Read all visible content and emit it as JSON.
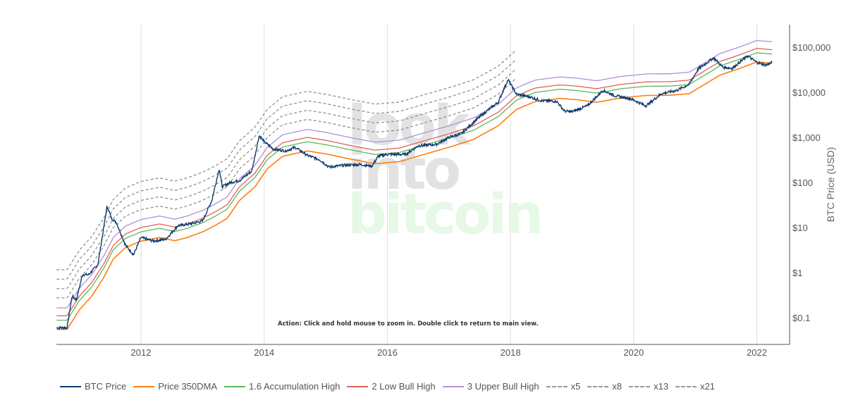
{
  "chart_data": {
    "type": "line",
    "title": "",
    "xlabel": "",
    "ylabel": "BTC Price (USD)",
    "y_scale": "log",
    "xlim": [
      2010.63,
      2022.52
    ],
    "ylim": [
      0.03,
      300000
    ],
    "x_ticks": [
      "2012",
      "2014",
      "2016",
      "2018",
      "2020",
      "2022"
    ],
    "x_tick_values": [
      2012,
      2014,
      2016,
      2018,
      2020,
      2022
    ],
    "y_ticks": [
      "$0.1",
      "$1",
      "$10",
      "$100",
      "$1,000",
      "$10,000",
      "$100,000"
    ],
    "y_tick_values": [
      0.1,
      1,
      10,
      100,
      1000,
      10000,
      100000
    ],
    "grid": "vertical",
    "legend_placement": "bottom",
    "annotation": "Action: Click and hold mouse to zoom in.  Double click to return to main view.",
    "watermark": [
      "look",
      "into",
      "bitcoin"
    ],
    "btc_price": {
      "name": "BTC Price",
      "color": "#0d3a6e",
      "x": [
        2010.63,
        2010.8,
        2010.88,
        2010.95,
        2011.05,
        2011.15,
        2011.3,
        2011.45,
        2011.52,
        2011.6,
        2011.75,
        2011.88,
        2012.0,
        2012.2,
        2012.4,
        2012.6,
        2012.8,
        2013.0,
        2013.15,
        2013.27,
        2013.32,
        2013.45,
        2013.6,
        2013.8,
        2013.92,
        2014.0,
        2014.15,
        2014.35,
        2014.5,
        2014.7,
        2014.9,
        2015.05,
        2015.3,
        2015.55,
        2015.75,
        2015.85,
        2016.0,
        2016.3,
        2016.5,
        2016.8,
        2017.0,
        2017.2,
        2017.45,
        2017.65,
        2017.8,
        2017.96,
        2018.1,
        2018.3,
        2018.5,
        2018.75,
        2018.88,
        2019.0,
        2019.25,
        2019.5,
        2019.7,
        2019.95,
        2020.2,
        2020.45,
        2020.7,
        2020.9,
        2021.05,
        2021.3,
        2021.45,
        2021.6,
        2021.85,
        2022.0,
        2022.15,
        2022.25
      ],
      "y": [
        0.06,
        0.06,
        0.3,
        0.25,
        0.9,
        0.9,
        1.5,
        30,
        16,
        13,
        4,
        2.5,
        6,
        5,
        5.5,
        11,
        12,
        14,
        40,
        200,
        80,
        100,
        110,
        180,
        1100,
        800,
        550,
        500,
        600,
        400,
        320,
        220,
        240,
        250,
        230,
        380,
        420,
        420,
        650,
        700,
        1000,
        1200,
        2500,
        4200,
        6000,
        19000,
        9000,
        8000,
        6500,
        6300,
        3800,
        3700,
        5000,
        11000,
        8300,
        7200,
        5000,
        9300,
        11000,
        15000,
        33000,
        58000,
        36000,
        34000,
        64000,
        46000,
        40000,
        46000
      ]
    },
    "dma350": {
      "name": "Price 350DMA",
      "color": "#ff7f0e",
      "x": [
        2010.63,
        2010.8,
        2011.0,
        2011.2,
        2011.4,
        2011.55,
        2011.75,
        2012.0,
        2012.3,
        2012.55,
        2012.75,
        2013.0,
        2013.2,
        2013.4,
        2013.6,
        2013.85,
        2014.05,
        2014.3,
        2014.7,
        2015.0,
        2015.4,
        2015.8,
        2016.2,
        2016.6,
        2017.0,
        2017.4,
        2017.8,
        2018.1,
        2018.4,
        2018.8,
        2019.1,
        2019.4,
        2019.8,
        2020.2,
        2020.6,
        2020.9,
        2021.1,
        2021.4,
        2021.7,
        2022.0,
        2022.25
      ],
      "y": [
        0.055,
        0.055,
        0.15,
        0.3,
        0.8,
        2,
        3.6,
        5,
        6,
        5.1,
        6,
        8,
        11,
        16,
        40,
        80,
        200,
        380,
        500,
        430,
        330,
        260,
        290,
        420,
        600,
        900,
        1800,
        4200,
        6200,
        7300,
        6800,
        6000,
        7500,
        8500,
        8600,
        9300,
        13500,
        24000,
        33000,
        47000,
        44000
      ]
    },
    "multipliers": [
      {
        "name": "1.6 Accumulation High",
        "factor": 1.6,
        "color": "#5cb85c",
        "dash": false,
        "x_end": 2022.25
      },
      {
        "name": "2 Low Bull High",
        "factor": 2,
        "color": "#e0625c",
        "dash": false,
        "x_end": 2022.25
      },
      {
        "name": "3 Upper Bull High",
        "factor": 3,
        "color": "#b48fd6",
        "dash": false,
        "x_end": 2022.25
      },
      {
        "name": "x5",
        "factor": 5,
        "color": "#888888",
        "dash": true,
        "x_end": 2018.1
      },
      {
        "name": "x8",
        "factor": 8,
        "color": "#888888",
        "dash": true,
        "x_end": 2018.1
      },
      {
        "name": "x13",
        "factor": 13,
        "color": "#888888",
        "dash": true,
        "x_end": 2018.1
      },
      {
        "name": "x21",
        "factor": 21,
        "color": "#888888",
        "dash": true,
        "x_end": 2018.1
      }
    ]
  },
  "legend": [
    {
      "label": "BTC Price",
      "color": "#0d3a6e",
      "dash": false
    },
    {
      "label": "Price 350DMA",
      "color": "#ff7f0e",
      "dash": false
    },
    {
      "label": "1.6 Accumulation High",
      "color": "#5cb85c",
      "dash": false
    },
    {
      "label": "2 Low Bull High",
      "color": "#e0625c",
      "dash": false
    },
    {
      "label": "3 Upper Bull High",
      "color": "#b48fd6",
      "dash": false
    },
    {
      "label": "x5",
      "color": "#999999",
      "dash": true
    },
    {
      "label": "x8",
      "color": "#999999",
      "dash": true
    },
    {
      "label": "x13",
      "color": "#999999",
      "dash": true
    },
    {
      "label": "x21",
      "color": "#999999",
      "dash": true
    }
  ]
}
